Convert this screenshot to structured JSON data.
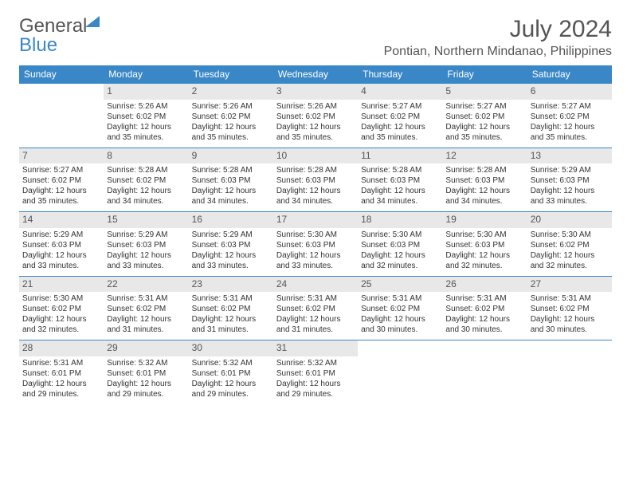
{
  "brand": {
    "word1": "General",
    "word2": "Blue"
  },
  "title": "July 2024",
  "location": "Pontian, Northern Mindanao, Philippines",
  "colors": {
    "header_bg": "#3a87c8",
    "header_text": "#ffffff",
    "daynum_bg": "#e8e8e8",
    "text": "#333333",
    "rule": "#3a87c8"
  },
  "weekdays": [
    "Sunday",
    "Monday",
    "Tuesday",
    "Wednesday",
    "Thursday",
    "Friday",
    "Saturday"
  ],
  "weeks": [
    [
      {
        "n": "",
        "sr": "",
        "ss": "",
        "dl": ""
      },
      {
        "n": "1",
        "sr": "Sunrise: 5:26 AM",
        "ss": "Sunset: 6:02 PM",
        "dl": "Daylight: 12 hours and 35 minutes."
      },
      {
        "n": "2",
        "sr": "Sunrise: 5:26 AM",
        "ss": "Sunset: 6:02 PM",
        "dl": "Daylight: 12 hours and 35 minutes."
      },
      {
        "n": "3",
        "sr": "Sunrise: 5:26 AM",
        "ss": "Sunset: 6:02 PM",
        "dl": "Daylight: 12 hours and 35 minutes."
      },
      {
        "n": "4",
        "sr": "Sunrise: 5:27 AM",
        "ss": "Sunset: 6:02 PM",
        "dl": "Daylight: 12 hours and 35 minutes."
      },
      {
        "n": "5",
        "sr": "Sunrise: 5:27 AM",
        "ss": "Sunset: 6:02 PM",
        "dl": "Daylight: 12 hours and 35 minutes."
      },
      {
        "n": "6",
        "sr": "Sunrise: 5:27 AM",
        "ss": "Sunset: 6:02 PM",
        "dl": "Daylight: 12 hours and 35 minutes."
      }
    ],
    [
      {
        "n": "7",
        "sr": "Sunrise: 5:27 AM",
        "ss": "Sunset: 6:02 PM",
        "dl": "Daylight: 12 hours and 35 minutes."
      },
      {
        "n": "8",
        "sr": "Sunrise: 5:28 AM",
        "ss": "Sunset: 6:02 PM",
        "dl": "Daylight: 12 hours and 34 minutes."
      },
      {
        "n": "9",
        "sr": "Sunrise: 5:28 AM",
        "ss": "Sunset: 6:03 PM",
        "dl": "Daylight: 12 hours and 34 minutes."
      },
      {
        "n": "10",
        "sr": "Sunrise: 5:28 AM",
        "ss": "Sunset: 6:03 PM",
        "dl": "Daylight: 12 hours and 34 minutes."
      },
      {
        "n": "11",
        "sr": "Sunrise: 5:28 AM",
        "ss": "Sunset: 6:03 PM",
        "dl": "Daylight: 12 hours and 34 minutes."
      },
      {
        "n": "12",
        "sr": "Sunrise: 5:28 AM",
        "ss": "Sunset: 6:03 PM",
        "dl": "Daylight: 12 hours and 34 minutes."
      },
      {
        "n": "13",
        "sr": "Sunrise: 5:29 AM",
        "ss": "Sunset: 6:03 PM",
        "dl": "Daylight: 12 hours and 33 minutes."
      }
    ],
    [
      {
        "n": "14",
        "sr": "Sunrise: 5:29 AM",
        "ss": "Sunset: 6:03 PM",
        "dl": "Daylight: 12 hours and 33 minutes."
      },
      {
        "n": "15",
        "sr": "Sunrise: 5:29 AM",
        "ss": "Sunset: 6:03 PM",
        "dl": "Daylight: 12 hours and 33 minutes."
      },
      {
        "n": "16",
        "sr": "Sunrise: 5:29 AM",
        "ss": "Sunset: 6:03 PM",
        "dl": "Daylight: 12 hours and 33 minutes."
      },
      {
        "n": "17",
        "sr": "Sunrise: 5:30 AM",
        "ss": "Sunset: 6:03 PM",
        "dl": "Daylight: 12 hours and 33 minutes."
      },
      {
        "n": "18",
        "sr": "Sunrise: 5:30 AM",
        "ss": "Sunset: 6:03 PM",
        "dl": "Daylight: 12 hours and 32 minutes."
      },
      {
        "n": "19",
        "sr": "Sunrise: 5:30 AM",
        "ss": "Sunset: 6:03 PM",
        "dl": "Daylight: 12 hours and 32 minutes."
      },
      {
        "n": "20",
        "sr": "Sunrise: 5:30 AM",
        "ss": "Sunset: 6:02 PM",
        "dl": "Daylight: 12 hours and 32 minutes."
      }
    ],
    [
      {
        "n": "21",
        "sr": "Sunrise: 5:30 AM",
        "ss": "Sunset: 6:02 PM",
        "dl": "Daylight: 12 hours and 32 minutes."
      },
      {
        "n": "22",
        "sr": "Sunrise: 5:31 AM",
        "ss": "Sunset: 6:02 PM",
        "dl": "Daylight: 12 hours and 31 minutes."
      },
      {
        "n": "23",
        "sr": "Sunrise: 5:31 AM",
        "ss": "Sunset: 6:02 PM",
        "dl": "Daylight: 12 hours and 31 minutes."
      },
      {
        "n": "24",
        "sr": "Sunrise: 5:31 AM",
        "ss": "Sunset: 6:02 PM",
        "dl": "Daylight: 12 hours and 31 minutes."
      },
      {
        "n": "25",
        "sr": "Sunrise: 5:31 AM",
        "ss": "Sunset: 6:02 PM",
        "dl": "Daylight: 12 hours and 30 minutes."
      },
      {
        "n": "26",
        "sr": "Sunrise: 5:31 AM",
        "ss": "Sunset: 6:02 PM",
        "dl": "Daylight: 12 hours and 30 minutes."
      },
      {
        "n": "27",
        "sr": "Sunrise: 5:31 AM",
        "ss": "Sunset: 6:02 PM",
        "dl": "Daylight: 12 hours and 30 minutes."
      }
    ],
    [
      {
        "n": "28",
        "sr": "Sunrise: 5:31 AM",
        "ss": "Sunset: 6:01 PM",
        "dl": "Daylight: 12 hours and 29 minutes."
      },
      {
        "n": "29",
        "sr": "Sunrise: 5:32 AM",
        "ss": "Sunset: 6:01 PM",
        "dl": "Daylight: 12 hours and 29 minutes."
      },
      {
        "n": "30",
        "sr": "Sunrise: 5:32 AM",
        "ss": "Sunset: 6:01 PM",
        "dl": "Daylight: 12 hours and 29 minutes."
      },
      {
        "n": "31",
        "sr": "Sunrise: 5:32 AM",
        "ss": "Sunset: 6:01 PM",
        "dl": "Daylight: 12 hours and 29 minutes."
      },
      {
        "n": "",
        "sr": "",
        "ss": "",
        "dl": ""
      },
      {
        "n": "",
        "sr": "",
        "ss": "",
        "dl": ""
      },
      {
        "n": "",
        "sr": "",
        "ss": "",
        "dl": ""
      }
    ]
  ]
}
